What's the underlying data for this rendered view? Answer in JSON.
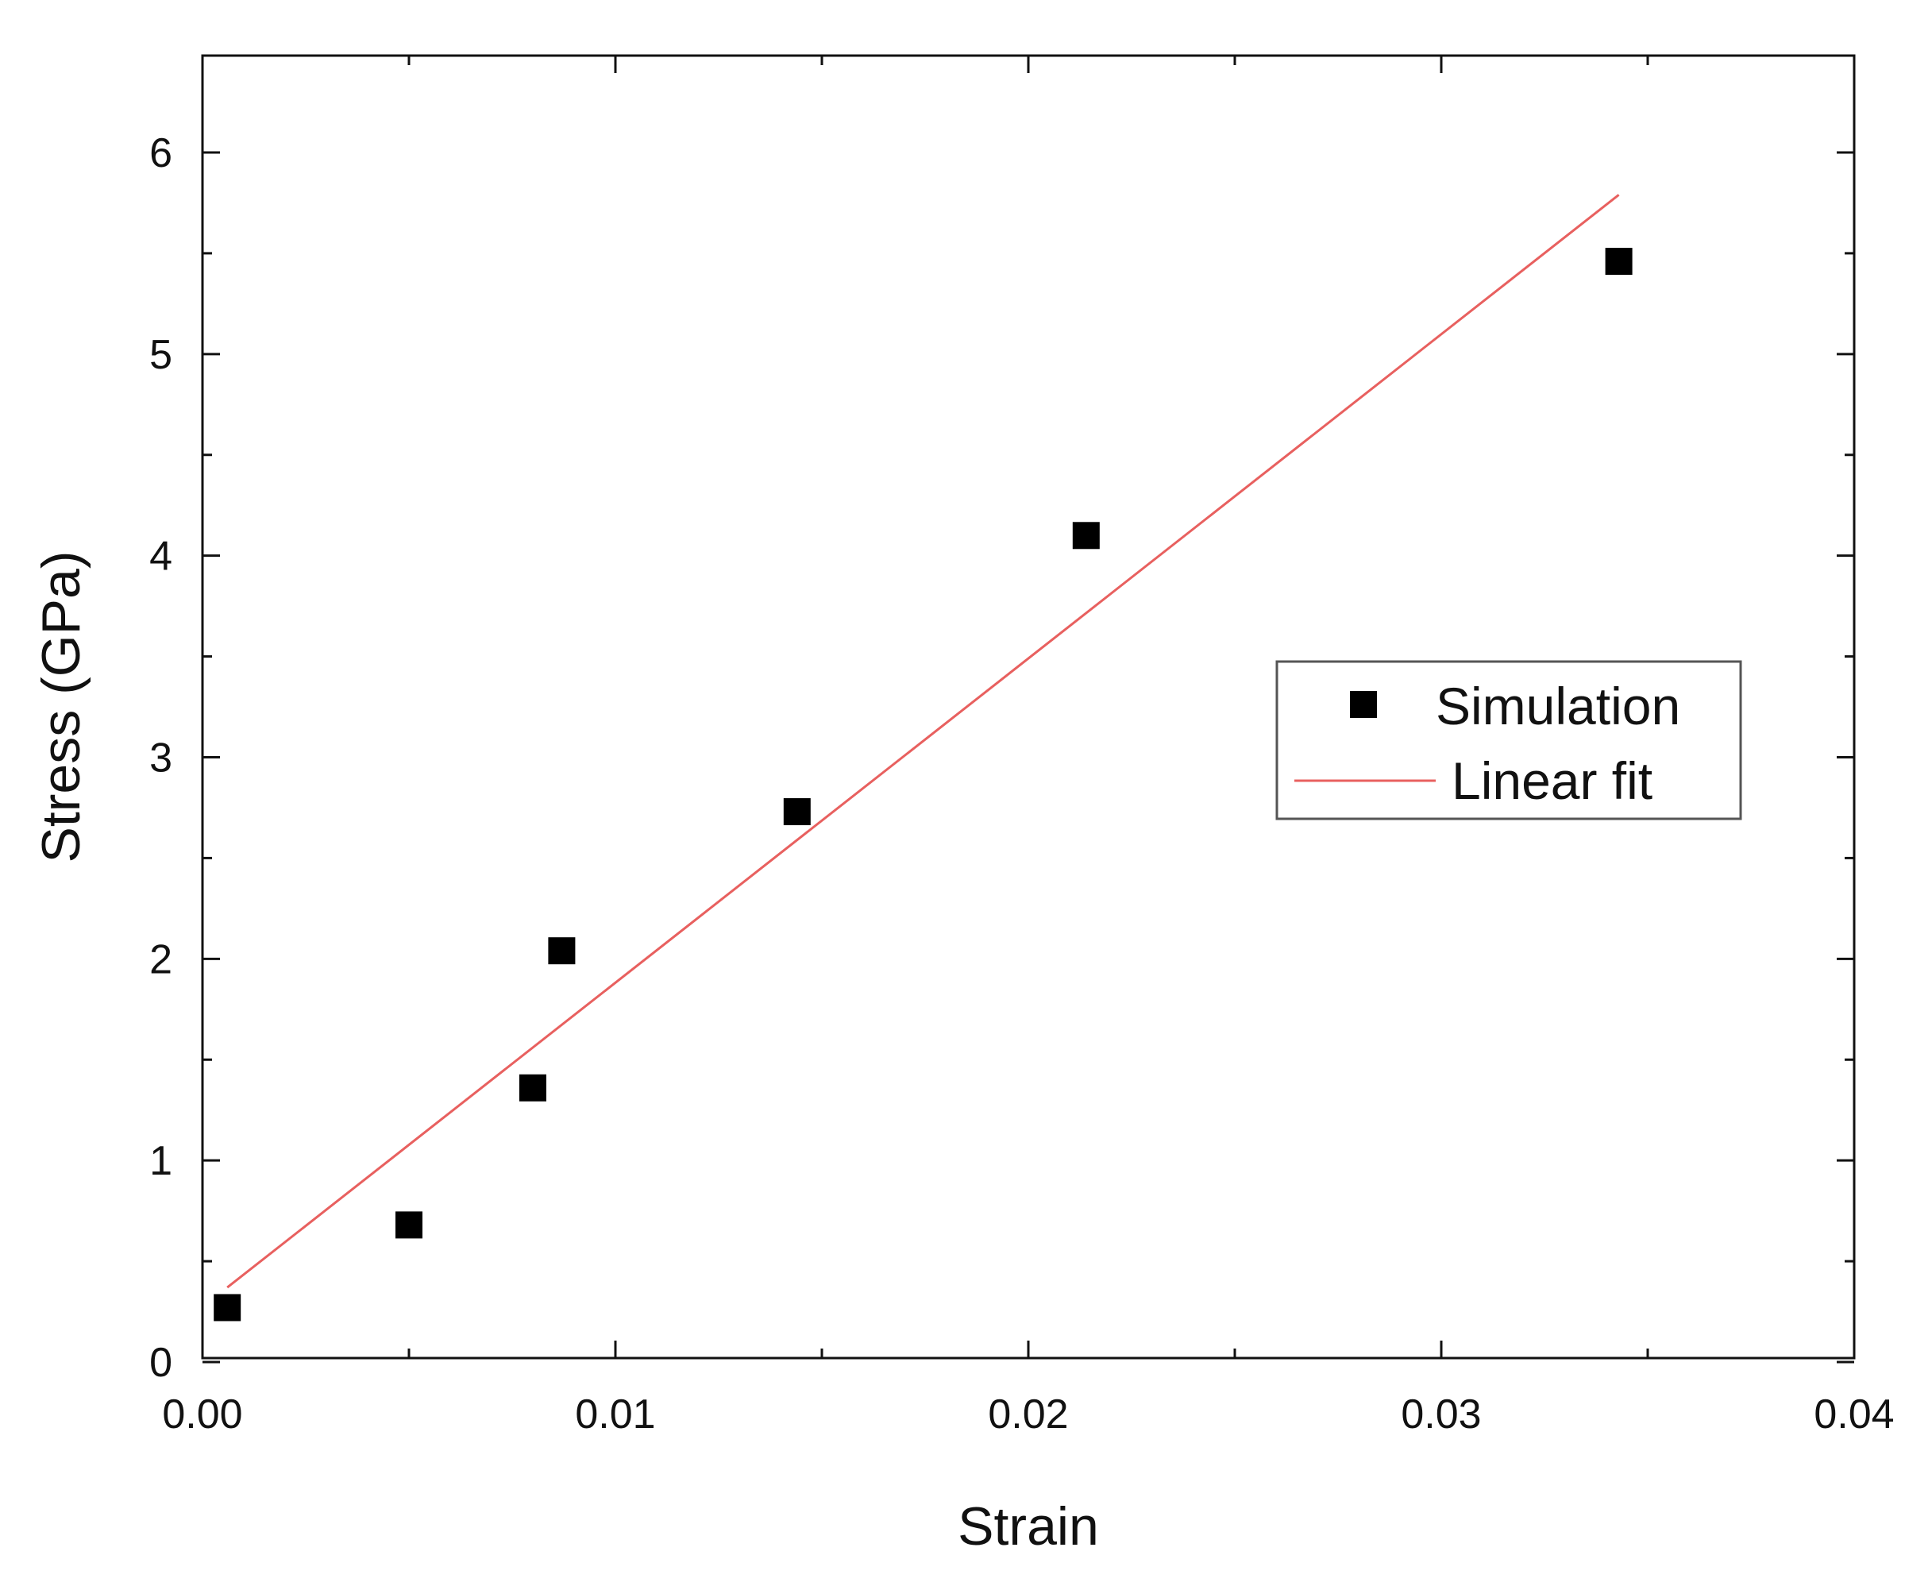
{
  "chart_data": {
    "type": "scatter",
    "xlabel": "Strain",
    "ylabel": "Stress (GPa)",
    "xlim": [
      0.0,
      0.04
    ],
    "ylim": [
      0,
      6.5
    ],
    "xticks": [
      0.0,
      0.01,
      0.02,
      0.03,
      0.04
    ],
    "xtick_labels": [
      "0.00",
      "0.01",
      "0.02",
      "0.03",
      "0.04"
    ],
    "yticks": [
      0,
      1,
      2,
      3,
      4,
      5,
      6
    ],
    "ytick_labels": [
      "0",
      "1",
      "2",
      "3",
      "4",
      "5",
      "6"
    ],
    "grid": false,
    "legend_position": "right-middle",
    "series": [
      {
        "name": "Simulation",
        "kind": "scatter",
        "marker": "square",
        "color": "#000000",
        "x": [
          0.0006,
          0.005,
          0.008,
          0.0087,
          0.0144,
          0.0214,
          0.0343
        ],
        "y": [
          0.27,
          0.68,
          1.36,
          2.04,
          2.73,
          4.1,
          5.46
        ]
      },
      {
        "name": "Linear fit",
        "kind": "line",
        "color": "#e8605f",
        "x": [
          0.0006,
          0.0343
        ],
        "y": [
          0.37,
          5.79
        ]
      }
    ]
  }
}
